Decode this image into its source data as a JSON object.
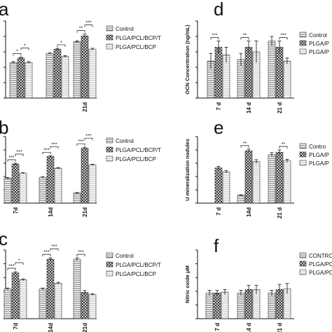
{
  "chart_data": [
    {
      "panel": "a",
      "type": "bar",
      "categories": [
        "",
        "",
        "21d"
      ],
      "series": [
        {
          "name": "Control",
          "values": [
            1.2,
            1.5,
            1.9
          ],
          "errors": [
            0.03,
            0.03,
            0.03
          ]
        },
        {
          "name": "PLGA/PCL/BCP/T",
          "values": [
            1.35,
            1.65,
            2.1
          ],
          "errors": [
            0.03,
            0.03,
            0.06
          ]
        },
        {
          "name": "PLGA/PCL/BCP",
          "values": [
            1.2,
            1.4,
            1.65
          ],
          "errors": [
            0.03,
            0.03,
            0.03
          ]
        }
      ],
      "ylabel": "",
      "ylim": [
        0,
        2.6
      ],
      "annotations": [
        "*",
        "*",
        "*",
        "**",
        "***"
      ],
      "legend": "right"
    },
    {
      "panel": "b",
      "type": "bar",
      "categories": [
        "7d",
        "14d",
        "21d"
      ],
      "series": [
        {
          "name": "Control",
          "values": [
            1.5,
            1.55,
            0.6
          ],
          "errors": [
            0.04,
            0.04,
            0.04
          ]
        },
        {
          "name": "PLGA/PCL/BCP/T",
          "values": [
            2.35,
            2.8,
            3.3
          ],
          "errors": [
            0.05,
            0.05,
            0.06
          ]
        },
        {
          "name": "PLGA/PCL/BCP",
          "values": [
            1.8,
            2.1,
            2.3
          ],
          "errors": [
            0.04,
            0.04,
            0.04
          ]
        }
      ],
      "ylabel": "",
      "ylim": [
        0,
        4.0
      ],
      "annotations": [
        "***",
        "***",
        "***",
        "***",
        "***",
        "***"
      ],
      "legend": "right"
    },
    {
      "panel": "c",
      "type": "bar",
      "categories": [
        "7d",
        "14d",
        "21d"
      ],
      "series": [
        {
          "name": "Control",
          "values": [
            1.3,
            1.3,
            2.6
          ],
          "errors": [
            0.04,
            0.04,
            0.06
          ]
        },
        {
          "name": "PLGA/PCL/BCP/T",
          "values": [
            2.0,
            2.6,
            1.15
          ],
          "errors": [
            0.05,
            0.06,
            0.08
          ]
        },
        {
          "name": "PLGA/PCL/BCP",
          "values": [
            1.7,
            1.55,
            1.05
          ],
          "errors": [
            0.04,
            0.04,
            0.04
          ]
        }
      ],
      "ylabel": "",
      "ylim": [
        0,
        3.0
      ],
      "annotations": [
        "***",
        "*",
        "***",
        "***",
        "***"
      ],
      "legend": "right"
    },
    {
      "panel": "d",
      "type": "bar",
      "categories": [
        "7 d",
        "14 d",
        "21 d"
      ],
      "series": [
        {
          "name": "Control",
          "values": [
            0.24,
            0.25,
            0.37
          ],
          "errors": [
            0.05,
            0.04,
            0.03
          ]
        },
        {
          "name": "PLGA/P",
          "values": [
            0.33,
            0.33,
            0.33
          ],
          "errors": [
            0.04,
            0.04,
            0.04
          ]
        },
        {
          "name": "PLGA/P",
          "values": [
            0.28,
            0.3,
            0.24
          ],
          "errors": [
            0.05,
            0.07,
            0.02
          ]
        }
      ],
      "ylabel": "OCN Concentration (ng/mL)",
      "ylim": [
        0,
        0.5
      ],
      "annotations": [
        "***",
        "**",
        "***"
      ],
      "legend": "right"
    },
    {
      "panel": "e",
      "type": "bar",
      "categories": [
        "7 d",
        "14d",
        "21 d"
      ],
      "series": [
        {
          "name": "Contro",
          "values": [
            0,
            10,
            62
          ],
          "errors": [
            0,
            0.7,
            2.5
          ]
        },
        {
          "name": "PLGA/P",
          "values": [
            45,
            67,
            65
          ],
          "errors": [
            2,
            2,
            3
          ]
        },
        {
          "name": "PLGA/P",
          "values": [
            40,
            53,
            54
          ],
          "errors": [
            1.5,
            2.5,
            2
          ]
        }
      ],
      "ylabel": "U mineralization nodules",
      "ylim": [
        0,
        85
      ],
      "annotations": [
        "**",
        "**"
      ],
      "legend": "right"
    },
    {
      "panel": "f",
      "type": "bar",
      "categories": [
        "7 d",
        "14 d",
        "21 d"
      ],
      "series": [
        {
          "name": "CONTRC",
          "values": [
            15,
            15,
            15
          ],
          "errors": [
            1.5,
            1.5,
            1.5
          ]
        },
        {
          "name": "PLGA/PC",
          "values": [
            15,
            17,
            17
          ],
          "errors": [
            1.5,
            2.5,
            3
          ]
        },
        {
          "name": "PLGA/PC",
          "values": [
            15.5,
            17,
            17.5
          ],
          "errors": [
            1.5,
            2.5,
            3
          ]
        }
      ],
      "ylabel": "Nitric oxide μM",
      "ylim": [
        0,
        40
      ],
      "annotations": [],
      "legend": "right"
    }
  ]
}
